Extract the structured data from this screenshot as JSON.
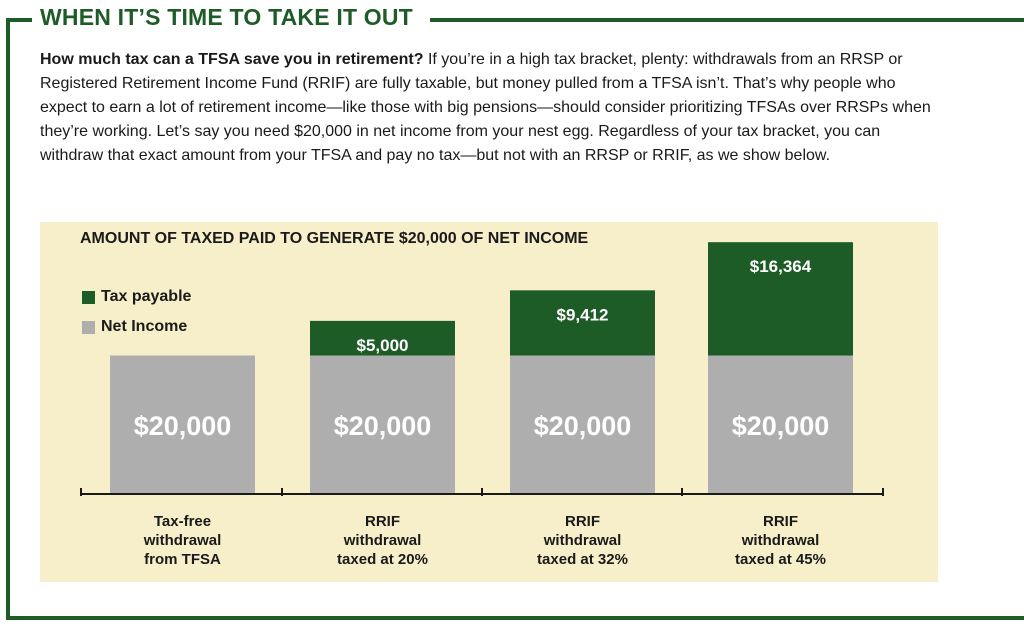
{
  "heading": "WHEN IT’S TIME TO TAKE IT OUT",
  "intro": {
    "lead": "How much tax can a TFSA save you in retirement?",
    "body": " If you’re in a high tax bracket, plenty: withdrawals from an RRSP or Registered Retirement Income Fund (RRIF) are fully taxable, but money pulled from a TFSA isn’t. That’s why people who expect to earn a lot of retirement income—like those with big pensions—should consider prioritizing TFSAs over RRSPs when they’re working. Let’s say you need $20,000 in net income from your nest egg. Regardless of your tax bracket, you can withdraw that exact amount from your TFSA and pay no tax—but not with an RRSP or RRIF, as we show below."
  },
  "colors": {
    "accent": "#1e5c27",
    "tax": "#1e5c27",
    "net": "#aeaeae",
    "panel": "#f7efc9"
  },
  "chart_data": {
    "type": "bar",
    "stacked": true,
    "title": "AMOUNT OF TAXED PAID TO GENERATE $20,000 OF NET INCOME",
    "categories": [
      [
        "Tax-free",
        "withdrawal",
        "from TFSA"
      ],
      [
        "RRIF",
        "withdrawal",
        "taxed at 20%"
      ],
      [
        "RRIF",
        "withdrawal",
        "taxed at 32%"
      ],
      [
        "RRIF",
        "withdrawal",
        "taxed at 45%"
      ]
    ],
    "series": [
      {
        "name": "Net Income",
        "values": [
          20000,
          20000,
          20000,
          20000
        ],
        "labels": [
          "$20,000",
          "$20,000",
          "$20,000",
          "$20,000"
        ],
        "color": "#aeaeae"
      },
      {
        "name": "Tax payable",
        "values": [
          0,
          5000,
          9412,
          16364
        ],
        "labels": [
          "",
          "$5,000",
          "$9,412",
          "$16,364"
        ],
        "color": "#1e5c27"
      }
    ],
    "legend_order": [
      1,
      0
    ],
    "legend_position": "top-left",
    "ylim": [
      0,
      40000
    ],
    "grid": false
  }
}
